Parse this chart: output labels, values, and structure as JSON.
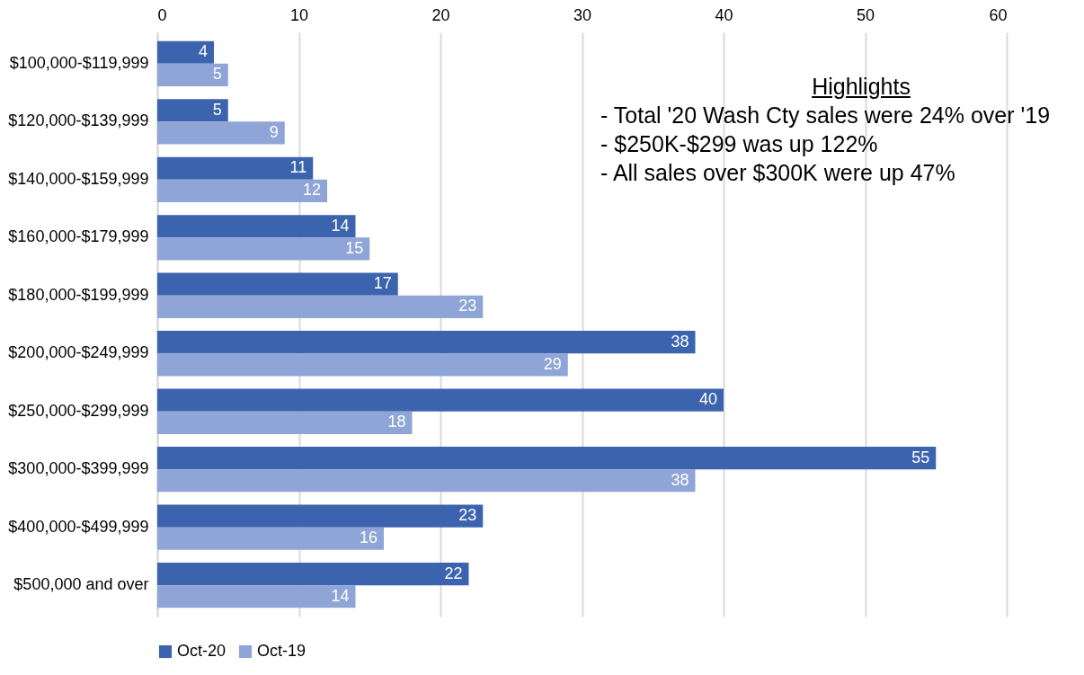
{
  "chart_data": {
    "type": "bar",
    "orientation": "horizontal",
    "categories": [
      "$100,000-$119,999",
      "$120,000-$139,999",
      "$140,000-$159,999",
      "$160,000-$179,999",
      "$180,000-$199,999",
      "$200,000-$249,999",
      "$250,000-$299,999",
      "$300,000-$399,999",
      "$400,000-$499,999",
      "$500,000 and over"
    ],
    "series": [
      {
        "name": "Oct-20",
        "color": "#3c64ae",
        "values": [
          4,
          5,
          11,
          14,
          17,
          38,
          40,
          55,
          23,
          22
        ]
      },
      {
        "name": "Oct-19",
        "color": "#8fa5d7",
        "values": [
          5,
          9,
          12,
          15,
          23,
          29,
          18,
          38,
          16,
          14
        ]
      }
    ],
    "xlim": [
      0,
      60
    ],
    "xticks": [
      0,
      10,
      20,
      30,
      40,
      50,
      60
    ],
    "grid": "x",
    "legend": "bottom",
    "data_labels": true,
    "annotations": [
      "Highlights",
      "- Total '20 Wash Cty sales were 24% over '19",
      "- $250K-$299 was up 122%",
      "- All sales over $300K were up 47%"
    ]
  }
}
